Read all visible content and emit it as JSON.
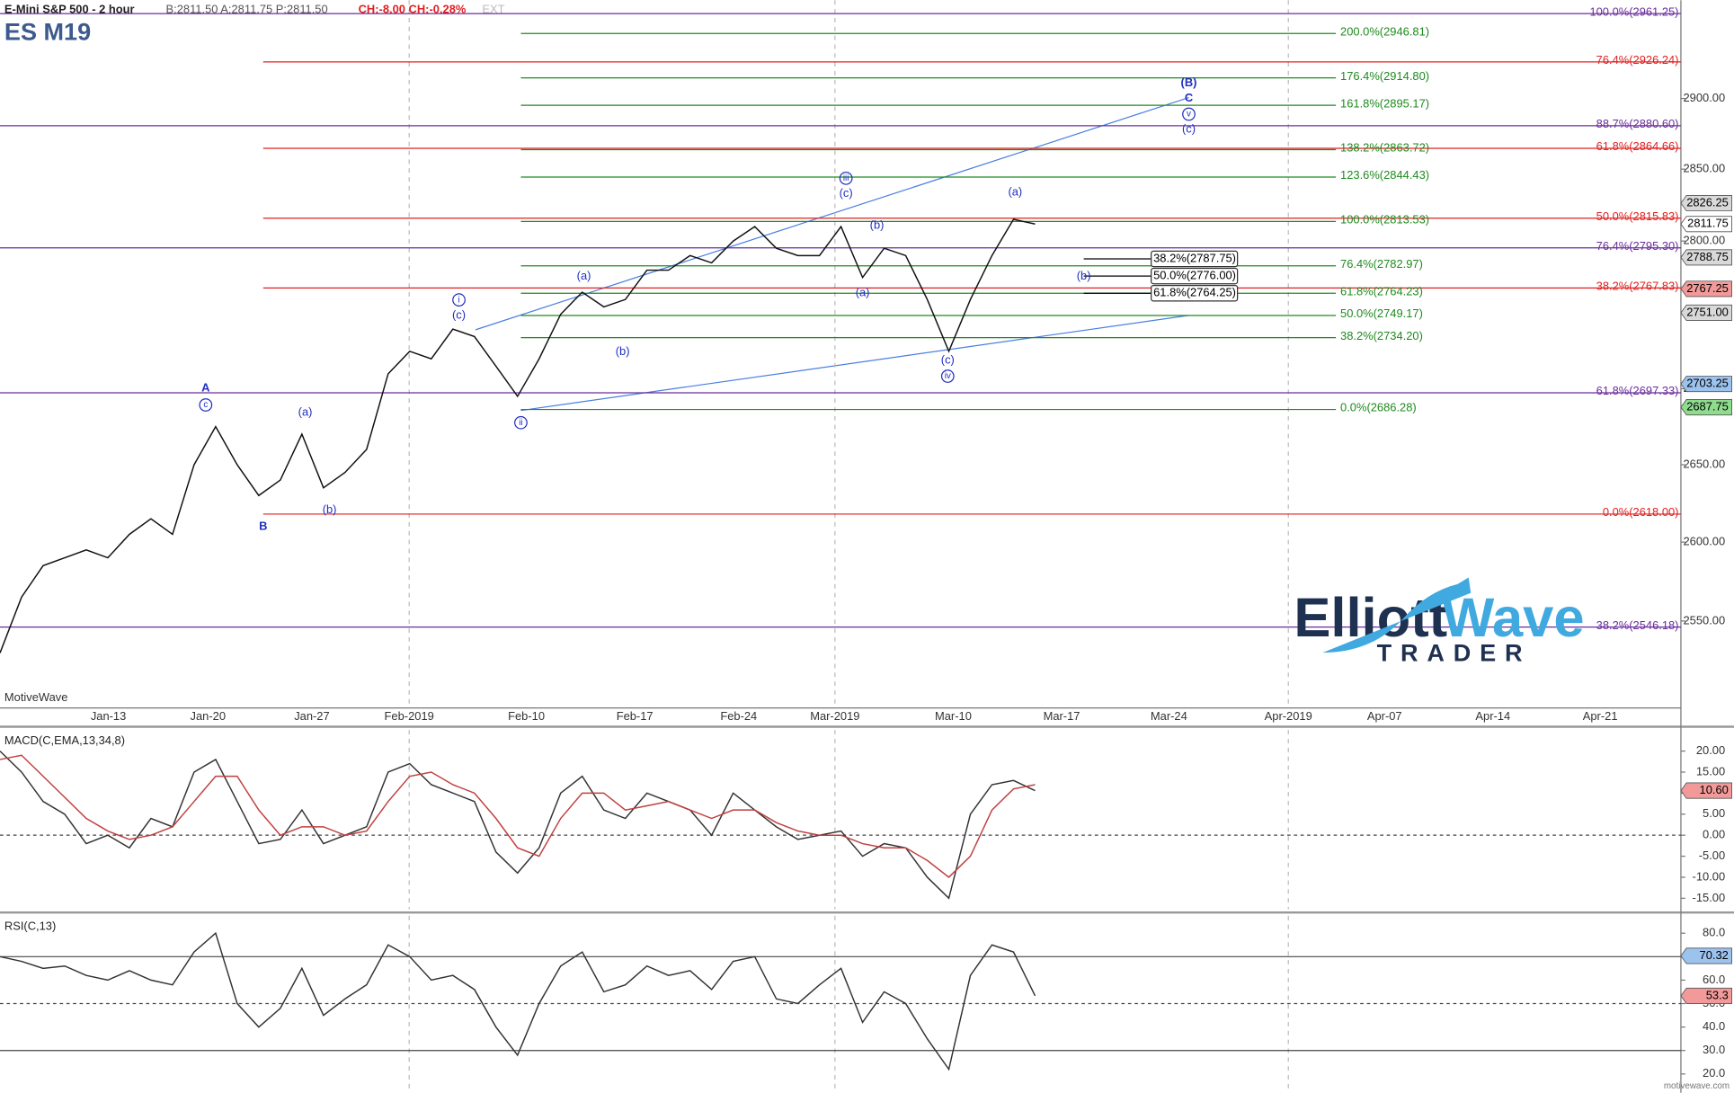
{
  "header": {
    "instrument": "E-Mini S&P 500 - 2 hour",
    "quote": "B:2811.50 A:2811.75 P:2811.50",
    "change": "CH:-8.00 CH:-0.28%",
    "ext": "EXT",
    "symbol": "ES M19",
    "source": "MotiveWave",
    "footer": "motivewave.com"
  },
  "logo": {
    "word1": "Elliott",
    "word2": "Wave",
    "word3": "TRADER"
  },
  "chart_data": [
    {
      "type": "line",
      "log_scale": true,
      "grid": true,
      "ylim": [
        2496,
        2971
      ],
      "yticks": [
        {
          "value": 2550,
          "label": "2550.00"
        },
        {
          "value": 2600,
          "label": "2600.00"
        },
        {
          "value": 2650,
          "label": "2650.00"
        },
        {
          "value": 2700,
          "label": "2700.00"
        },
        {
          "value": 2750,
          "label": "2750.00"
        },
        {
          "value": 2800,
          "label": "2800.00"
        },
        {
          "value": 2850,
          "label": "2850.00"
        },
        {
          "value": 2900,
          "label": "2900.00"
        }
      ],
      "x_tick_labels": [
        "Jan-13",
        "Jan-20",
        "Jan-27",
        "Feb-2019",
        "Feb-10",
        "Feb-17",
        "Feb-24",
        "Mar-2019",
        "Mar-10",
        "Mar-17",
        "Mar-24",
        "Apr-2019",
        "Apr-07",
        "Apr-14",
        "Apr-21"
      ],
      "series": [
        {
          "color": "#111111",
          "values": [
            2530,
            2565,
            2585,
            2590,
            2595,
            2590,
            2605,
            2615,
            2605,
            2650,
            2675,
            2650,
            2630,
            2640,
            2670,
            2635,
            2645,
            2660,
            2710,
            2725,
            2720,
            2740,
            2735,
            2715,
            2695,
            2720,
            2750,
            2765,
            2755,
            2760,
            2780,
            2780,
            2790,
            2785,
            2800,
            2810,
            2795,
            2790,
            2790,
            2810,
            2775,
            2795,
            2790,
            2760,
            2725,
            2760,
            2790,
            2815,
            2811.75
          ]
        }
      ],
      "fib_levels": [
        {
          "value": 2961.25,
          "label": "100.0%(2961.25)",
          "color": "#6a2c9c",
          "group": "purple"
        },
        {
          "value": 2880.6,
          "label": "88.7%(2880.60)",
          "color": "#6a2c9c",
          "group": "purple"
        },
        {
          "value": 2795.3,
          "label": "76.4%(2795.30)",
          "color": "#6a2c9c",
          "group": "purple"
        },
        {
          "value": 2697.33,
          "label": "61.8%(2697.33)",
          "color": "#6a2c9c",
          "group": "purple"
        },
        {
          "value": 2546.18,
          "label": "38.2%(2546.18)",
          "color": "#6a2c9c",
          "group": "purple"
        },
        {
          "value": 2926.24,
          "label": "76.4%(2926.24)",
          "color": "#e02020",
          "group": "red"
        },
        {
          "value": 2864.66,
          "label": "61.8%(2864.66)",
          "color": "#e02020",
          "group": "red"
        },
        {
          "value": 2815.83,
          "label": "50.0%(2815.83)",
          "color": "#e02020",
          "group": "red"
        },
        {
          "value": 2767.83,
          "label": "38.2%(2767.83)",
          "color": "#e02020",
          "group": "red"
        },
        {
          "value": 2618.0,
          "label": "0.0%(2618.00)",
          "color": "#e02020",
          "group": "red"
        },
        {
          "value": 2946.81,
          "label": "200.0%(2946.81)",
          "color": "#1f8a1f",
          "group": "green"
        },
        {
          "value": 2914.8,
          "label": "176.4%(2914.80)",
          "color": "#1f8a1f",
          "group": "green"
        },
        {
          "value": 2895.17,
          "label": "161.8%(2895.17)",
          "color": "#1f8a1f",
          "group": "green"
        },
        {
          "value": 2863.72,
          "label": "138.2%(2863.72)",
          "color": "#1f8a1f",
          "group": "green"
        },
        {
          "value": 2844.43,
          "label": "123.6%(2844.43)",
          "color": "#1f8a1f",
          "group": "green"
        },
        {
          "value": 2813.53,
          "label": "100.0%(2813.53)",
          "color": "#1f8a1f",
          "group": "green"
        },
        {
          "value": 2782.97,
          "label": "76.4%(2782.97)",
          "color": "#1f8a1f",
          "group": "green"
        },
        {
          "value": 2764.23,
          "label": "61.8%(2764.23)",
          "color": "#1f8a1f",
          "group": "green"
        },
        {
          "value": 2749.17,
          "label": "50.0%(2749.17)",
          "color": "#1f8a1f",
          "group": "green"
        },
        {
          "value": 2734.2,
          "label": "38.2%(2734.20)",
          "color": "#1f8a1f",
          "group": "green"
        },
        {
          "value": 2686.28,
          "label": "0.0%(2686.28)",
          "color": "#1f8a1f",
          "group": "green"
        }
      ],
      "targets": [
        {
          "value": 2787.75,
          "label": "38.2%(2787.75)"
        },
        {
          "value": 2776.0,
          "label": "50.0%(2776.00)"
        },
        {
          "value": 2764.25,
          "label": "61.8%(2764.25)"
        }
      ],
      "price_flags": [
        {
          "value": 2826.25,
          "label": "2826.25",
          "color": "#d9d9d9"
        },
        {
          "value": 2811.75,
          "label": "2811.75",
          "color": "#ffffff"
        },
        {
          "value": 2788.75,
          "label": "2788.75",
          "color": "#d9d9d9"
        },
        {
          "value": 2767.25,
          "label": "2767.25",
          "color": "#f29a9a"
        },
        {
          "value": 2751.0,
          "label": "2751.00",
          "color": "#d9d9d9"
        },
        {
          "value": 2703.25,
          "label": "2703.25",
          "color": "#9cc2ee"
        },
        {
          "value": 2687.75,
          "label": "2687.75",
          "color": "#8fdc8f"
        }
      ],
      "wave_labels": [
        {
          "text": "A",
          "circled": false
        },
        {
          "text": "c",
          "circled": true
        },
        {
          "text": "B",
          "circled": false
        },
        {
          "text": "(a)",
          "circled": false
        },
        {
          "text": "(b)",
          "circled": false
        },
        {
          "text": "i",
          "circled": true
        },
        {
          "text": "(c)",
          "circled": false
        },
        {
          "text": "(a)",
          "circled": false
        },
        {
          "text": "(b)",
          "circled": false
        },
        {
          "text": "ii",
          "circled": true
        },
        {
          "text": "iii",
          "circled": true
        },
        {
          "text": "(c)",
          "circled": false
        },
        {
          "text": "(b)",
          "circled": false
        },
        {
          "text": "(a)",
          "circled": false
        },
        {
          "text": "(c)",
          "circled": false
        },
        {
          "text": "iv",
          "circled": true
        },
        {
          "text": "(a)",
          "circled": false
        },
        {
          "text": "(b)",
          "circled": false
        },
        {
          "text": "(B)",
          "circled": false
        },
        {
          "text": "C",
          "circled": false
        },
        {
          "text": "v",
          "circled": true
        },
        {
          "text": "(c)",
          "circled": false
        }
      ]
    },
    {
      "type": "line",
      "title": "MACD(C,EMA,13,34,8)",
      "ylim": [
        -17.6,
        25
      ],
      "yticks": [
        {
          "value": -15,
          "label": "-15.00"
        },
        {
          "value": -10,
          "label": "-10.00"
        },
        {
          "value": -5,
          "label": "-5.00"
        },
        {
          "value": 0,
          "label": "0.00"
        },
        {
          "value": 5,
          "label": "5.00"
        },
        {
          "value": 10,
          "label": "10.00"
        },
        {
          "value": 15,
          "label": "15.00"
        },
        {
          "value": 20,
          "label": "20.00"
        }
      ],
      "hlines": [
        {
          "value": 0,
          "dashed": true
        }
      ],
      "series": [
        {
          "color": "#333333",
          "values": [
            20,
            15,
            8,
            5,
            -2,
            0,
            -3,
            4,
            2,
            15,
            18,
            8,
            -2,
            -1,
            6,
            -2,
            0,
            2,
            15,
            17,
            12,
            10,
            8,
            -4,
            -9,
            -3,
            10,
            14,
            6,
            4,
            10,
            8,
            6,
            0,
            10,
            6,
            2,
            -1,
            0,
            1,
            -5,
            -2,
            -3,
            -10,
            -15,
            5,
            12,
            13,
            10.6
          ]
        },
        {
          "color": "#c04040",
          "values": [
            18,
            19,
            14,
            9,
            4,
            1,
            -1,
            0,
            2,
            8,
            14,
            14,
            6,
            0,
            2,
            2,
            0,
            1,
            8,
            14,
            15,
            12,
            10,
            4,
            -3,
            -5,
            4,
            10,
            10,
            6,
            7,
            8,
            6,
            4,
            6,
            6,
            3,
            1,
            0,
            0,
            -2,
            -3,
            -3,
            -6,
            -10,
            -5,
            6,
            11,
            12
          ]
        }
      ],
      "price_flags": [
        {
          "value": 10.6,
          "label": "10.60",
          "color": "#f29a9a"
        }
      ]
    },
    {
      "type": "line",
      "title": "RSI(C,13)",
      "ylim": [
        13.4,
        87.4
      ],
      "yticks": [
        {
          "value": 20,
          "label": "20.0"
        },
        {
          "value": 30,
          "label": "30.0"
        },
        {
          "value": 40,
          "label": "40.0"
        },
        {
          "value": 50,
          "label": "50.0"
        },
        {
          "value": 60,
          "label": "60.0"
        },
        {
          "value": 70,
          "label": "70.0"
        },
        {
          "value": 80,
          "label": "80.0"
        }
      ],
      "hlines": [
        {
          "value": 30,
          "dashed": false
        },
        {
          "value": 50,
          "dashed": true
        },
        {
          "value": 70,
          "dashed": false
        }
      ],
      "series": [
        {
          "color": "#333333",
          "values": [
            70,
            68,
            65,
            66,
            62,
            60,
            64,
            60,
            58,
            72,
            80,
            50,
            40,
            48,
            65,
            45,
            52,
            58,
            75,
            70,
            60,
            62,
            56,
            40,
            28,
            50,
            66,
            72,
            55,
            58,
            66,
            62,
            64,
            56,
            68,
            70,
            52,
            50,
            58,
            65,
            42,
            55,
            50,
            35,
            22,
            62,
            75,
            72,
            53.3
          ]
        }
      ],
      "price_flags": [
        {
          "value": 70.32,
          "label": "70.32",
          "color": "#9cc2ee"
        },
        {
          "value": 53.3,
          "label": "53.3",
          "color": "#f29a9a"
        }
      ]
    }
  ]
}
